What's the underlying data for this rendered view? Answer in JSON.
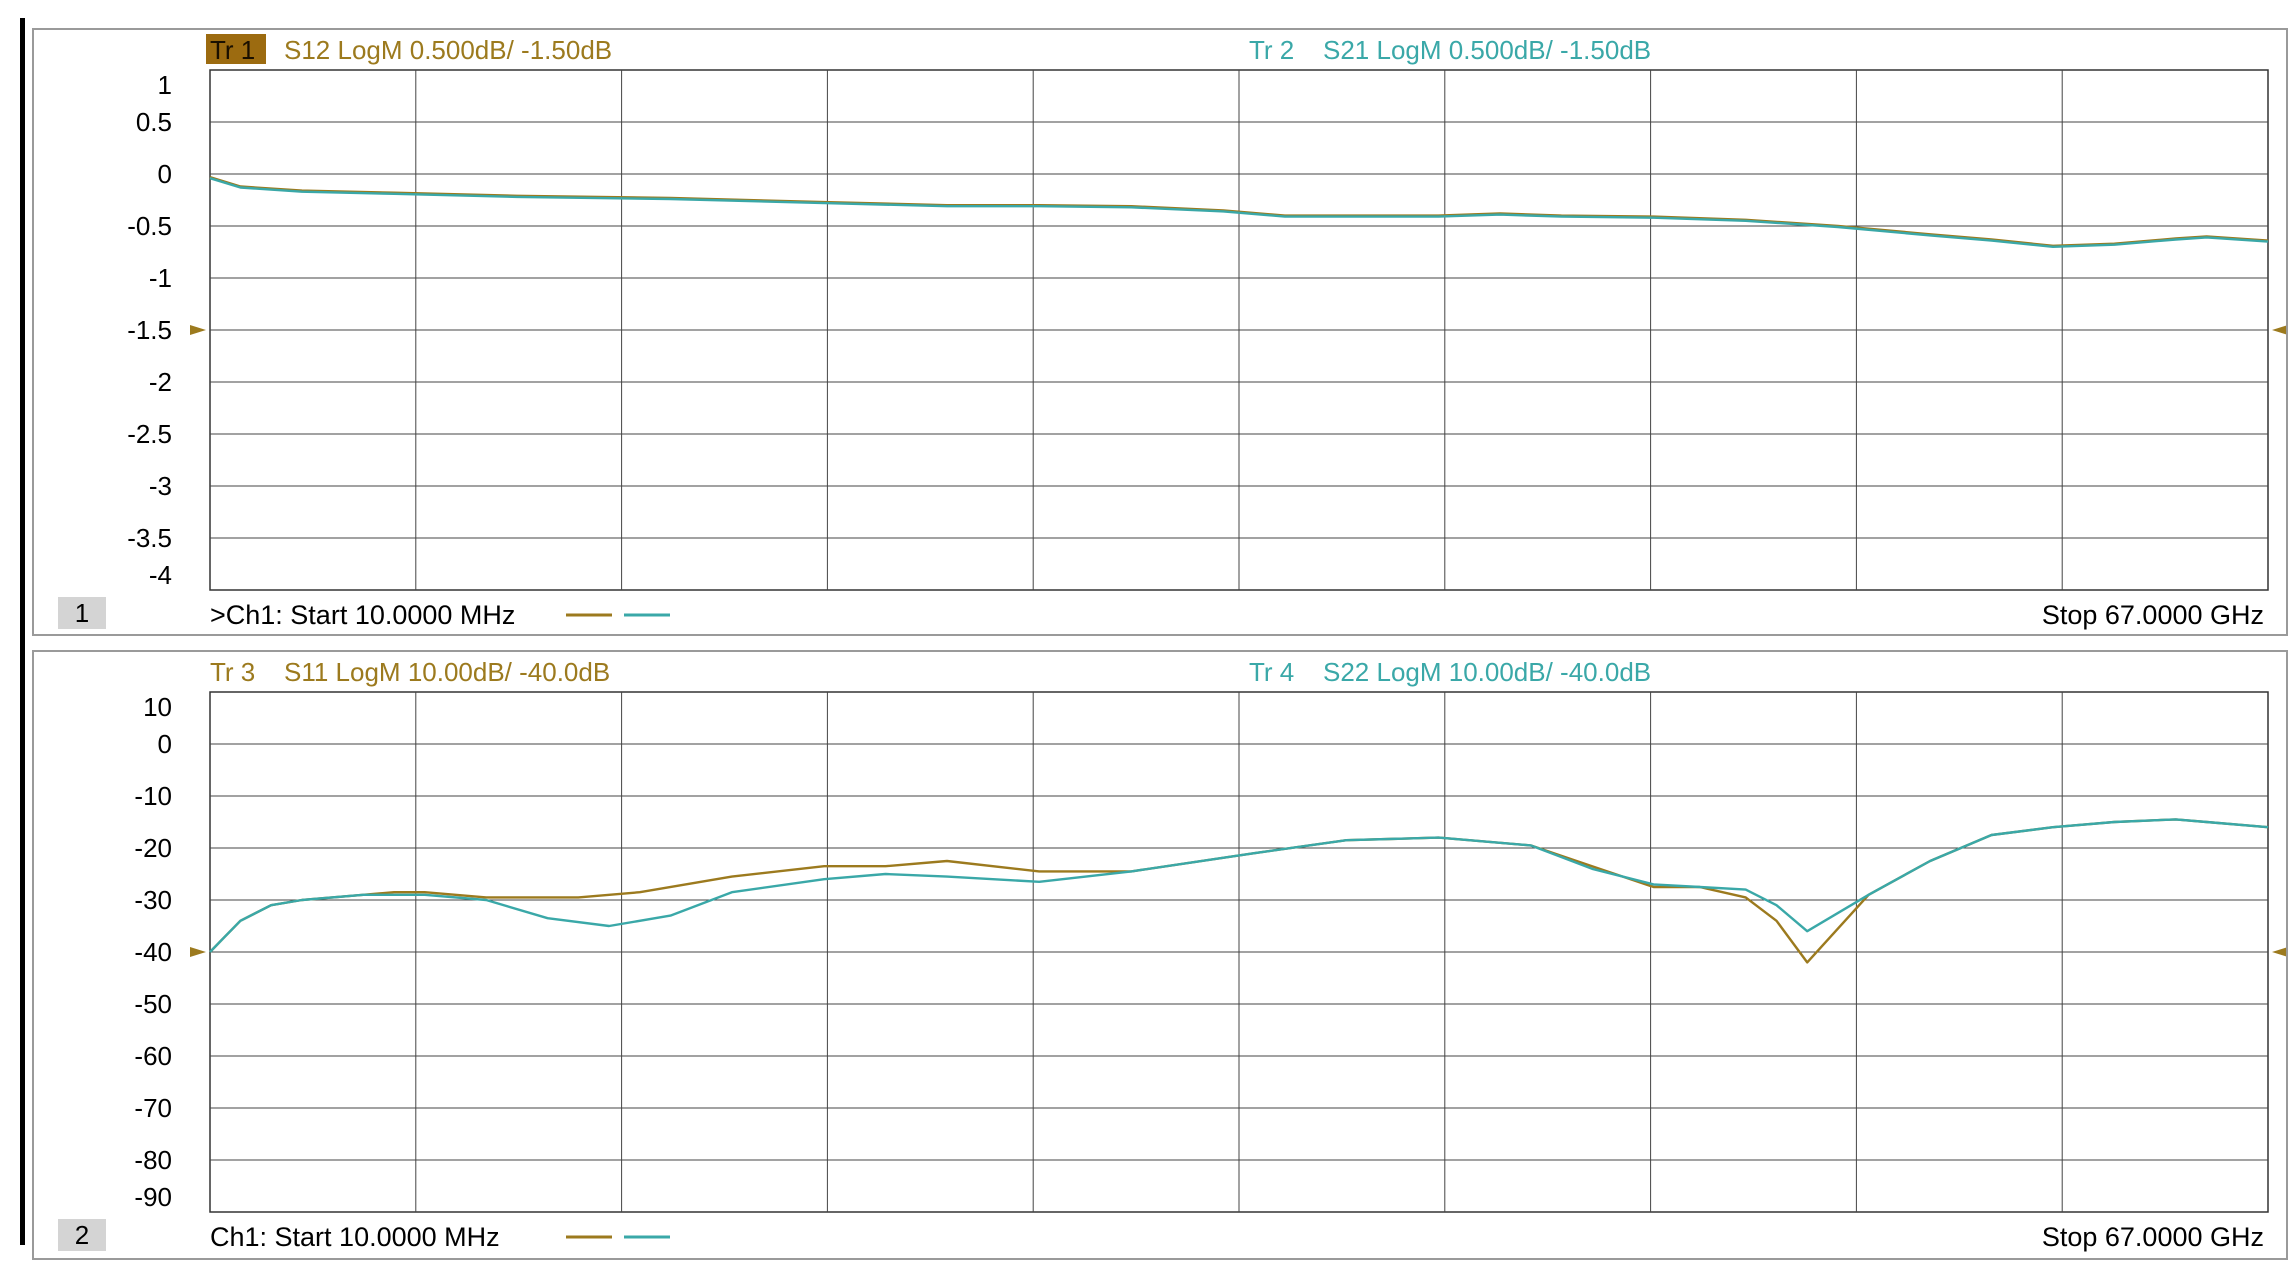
{
  "chart_data": [
    {
      "type": "line",
      "channel_number": "1",
      "footer": {
        "start_text": ">Ch1:  Start  10.0000 MHz",
        "stop_text": "Stop  67.0000 GHz"
      },
      "x_range": [
        0.01,
        67
      ],
      "x_unit": "GHz",
      "ylim": [
        -4,
        1
      ],
      "yticks": [
        "1",
        "0.5",
        "0",
        "-0.5",
        "-1",
        "-1.5",
        "-2",
        "-2.5",
        "-3",
        "-3.5",
        "-4"
      ],
      "reference_level": -1.5,
      "grid": true,
      "series": [
        {
          "trace_label": "Tr 1",
          "name": "S12 LogM 0.500dB/  -1.50dB",
          "color": "#9c7a1e",
          "label_bg": "#9c6b10",
          "active": true,
          "x": [
            0.01,
            1,
            3,
            6,
            10,
            15,
            20,
            24,
            27,
            30,
            33,
            35,
            38,
            40,
            42,
            44,
            47,
            50,
            53,
            56,
            58,
            60,
            62,
            64,
            65,
            67
          ],
          "y": [
            -0.03,
            -0.12,
            -0.16,
            -0.18,
            -0.21,
            -0.23,
            -0.27,
            -0.3,
            -0.3,
            -0.31,
            -0.35,
            -0.4,
            -0.4,
            -0.4,
            -0.38,
            -0.4,
            -0.41,
            -0.44,
            -0.5,
            -0.58,
            -0.63,
            -0.69,
            -0.67,
            -0.62,
            -0.6,
            -0.64
          ]
        },
        {
          "trace_label": "Tr 2",
          "name": "S21 LogM 0.500dB/  -1.50dB",
          "color": "#3aa8a8",
          "label_bg": "",
          "active": false,
          "x": [
            0.01,
            1,
            3,
            6,
            10,
            15,
            20,
            24,
            27,
            30,
            33,
            35,
            38,
            40,
            42,
            44,
            47,
            50,
            53,
            56,
            58,
            60,
            62,
            64,
            65,
            67
          ],
          "y": [
            -0.04,
            -0.13,
            -0.17,
            -0.19,
            -0.22,
            -0.24,
            -0.28,
            -0.31,
            -0.31,
            -0.32,
            -0.36,
            -0.41,
            -0.41,
            -0.41,
            -0.39,
            -0.41,
            -0.42,
            -0.45,
            -0.51,
            -0.59,
            -0.64,
            -0.7,
            -0.68,
            -0.63,
            -0.61,
            -0.65
          ]
        }
      ]
    },
    {
      "type": "line",
      "channel_number": "2",
      "footer": {
        "start_text": "Ch1:  Start  10.0000 MHz",
        "stop_text": "Stop  67.0000 GHz"
      },
      "x_range": [
        0.01,
        67
      ],
      "x_unit": "GHz",
      "ylim": [
        -90,
        10
      ],
      "yticks": [
        "10",
        "0",
        "-10",
        "-20",
        "-30",
        "-40",
        "-50",
        "-60",
        "-70",
        "-80",
        "-90"
      ],
      "reference_level": -40,
      "grid": true,
      "series": [
        {
          "trace_label": "Tr 3",
          "name": "S11 LogM 10.00dB/  -40.0dB",
          "color": "#9c7a1e",
          "label_bg": "",
          "active": false,
          "x": [
            0.01,
            0.5,
            1,
            2,
            3,
            5,
            6,
            7,
            9,
            12,
            14,
            17,
            20,
            22,
            24,
            27,
            30,
            34,
            37,
            40,
            43,
            45,
            47,
            48.5,
            50,
            51,
            52,
            54,
            56,
            58,
            60,
            62,
            64,
            65,
            67
          ],
          "y": [
            -40,
            -37,
            -34,
            -31,
            -30,
            -29,
            -28.5,
            -28.5,
            -29.5,
            -29.5,
            -28.5,
            -25.5,
            -23.5,
            -23.5,
            -22.5,
            -24.5,
            -24.5,
            -21,
            -18.5,
            -18,
            -19.5,
            -23.5,
            -27.5,
            -27.5,
            -29.5,
            -34,
            -42,
            -29,
            -22.5,
            -17.5,
            -16,
            -15,
            -14.5,
            -15,
            -16
          ]
        },
        {
          "trace_label": "Tr 4",
          "name": "S22 LogM 10.00dB/  -40.0dB",
          "color": "#3aa8a8",
          "label_bg": "",
          "active": false,
          "x": [
            0.01,
            0.5,
            1,
            2,
            3,
            5,
            6,
            7,
            9,
            11,
            13,
            15,
            17,
            20,
            22,
            24,
            27,
            30,
            34,
            37,
            40,
            43,
            45,
            47,
            48.5,
            50,
            51,
            52,
            54,
            56,
            58,
            60,
            62,
            64,
            65,
            67
          ],
          "y": [
            -40,
            -37,
            -34,
            -31,
            -30,
            -29,
            -29,
            -29,
            -30,
            -33.5,
            -35,
            -33,
            -28.5,
            -26,
            -25,
            -25.5,
            -26.5,
            -24.5,
            -21,
            -18.5,
            -18,
            -19.5,
            -24,
            -27,
            -27.5,
            -28,
            -31,
            -36,
            -29,
            -22.5,
            -17.5,
            -16,
            -15,
            -14.5,
            -15,
            -16
          ]
        }
      ]
    }
  ]
}
